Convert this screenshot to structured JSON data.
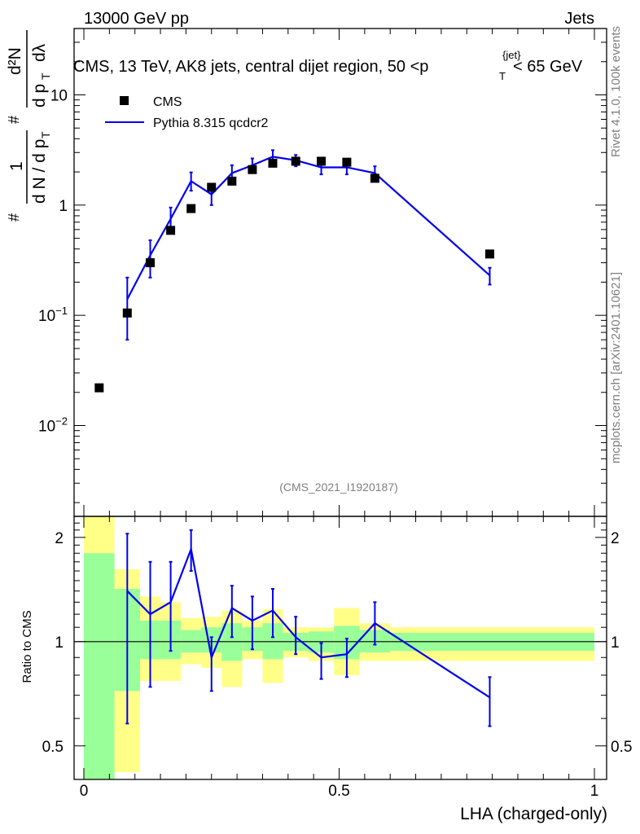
{
  "header": {
    "left": "13000 GeV pp",
    "right": "Jets"
  },
  "side_labels": {
    "rivet": "Rivet 4.1.0,  100k events",
    "mcplots": "mcplots.cern.ch [arXiv:2401.10621]"
  },
  "colors": {
    "data": "#000000",
    "mc": "#0000ee",
    "band_inner": "#99ff99",
    "band_outer": "#ffff88"
  },
  "chart_data": {
    "type": "scatter",
    "title": "CMS, 13 TeV, AK8 jets, central dijet region, 50 <p",
    "title_tail": "< 65 GeV",
    "title_sup": "{jet}",
    "title_sub": "T",
    "analysis_id": "(CMS_2021_I1920187)",
    "xlabel": "LHA (charged-only)",
    "xlim": [
      0,
      1
    ],
    "ylabel_main": {
      "hash": "#",
      "one": "1",
      "dN": "d N / d p",
      "sub_T": "T",
      "d2N": "d²N",
      "dpt_dlam": "d p",
      "dlam": "dλ"
    },
    "ylim_main": [
      0.0015,
      40
    ],
    "yscale_main": "log",
    "y_ticks_main": [
      {
        "value": 10,
        "base": "10",
        "exp": ""
      },
      {
        "value": 1,
        "base": "1",
        "exp": ""
      },
      {
        "value": 0.1,
        "base": "10",
        "exp": "−1"
      },
      {
        "value": 0.01,
        "base": "10",
        "exp": "−2"
      }
    ],
    "x_ticks": [
      {
        "value": 0,
        "label": "0"
      },
      {
        "value": 0.5,
        "label": "0.5"
      },
      {
        "value": 1,
        "label": "1"
      }
    ],
    "legend": [
      {
        "name": "CMS",
        "kind": "marker"
      },
      {
        "name": "Pythia 8.315 qcdcr2",
        "kind": "line"
      }
    ],
    "data_points": [
      {
        "x": 0.03,
        "y": 0.022
      },
      {
        "x": 0.085,
        "y": 0.105
      },
      {
        "x": 0.13,
        "y": 0.3
      },
      {
        "x": 0.17,
        "y": 0.59
      },
      {
        "x": 0.21,
        "y": 0.93
      },
      {
        "x": 0.25,
        "y": 1.45
      },
      {
        "x": 0.29,
        "y": 1.65
      },
      {
        "x": 0.33,
        "y": 2.1
      },
      {
        "x": 0.37,
        "y": 2.4
      },
      {
        "x": 0.415,
        "y": 2.5
      },
      {
        "x": 0.465,
        "y": 2.5
      },
      {
        "x": 0.515,
        "y": 2.45
      },
      {
        "x": 0.57,
        "y": 1.75
      },
      {
        "x": 0.795,
        "y": 0.36
      }
    ],
    "mc_points": [
      {
        "x": 0.085,
        "y": 0.14,
        "lo": 0.06,
        "hi": 0.22
      },
      {
        "x": 0.13,
        "y": 0.35,
        "lo": 0.22,
        "hi": 0.48
      },
      {
        "x": 0.17,
        "y": 0.75,
        "lo": 0.55,
        "hi": 0.95
      },
      {
        "x": 0.21,
        "y": 1.65,
        "lo": 1.35,
        "hi": 1.98
      },
      {
        "x": 0.25,
        "y": 1.25,
        "lo": 1.0,
        "hi": 1.55
      },
      {
        "x": 0.29,
        "y": 1.95,
        "lo": 1.65,
        "hi": 2.3
      },
      {
        "x": 0.33,
        "y": 2.3,
        "lo": 2.0,
        "hi": 2.65
      },
      {
        "x": 0.37,
        "y": 2.75,
        "lo": 2.4,
        "hi": 3.15
      },
      {
        "x": 0.415,
        "y": 2.55,
        "lo": 2.25,
        "hi": 2.85
      },
      {
        "x": 0.465,
        "y": 2.2,
        "lo": 1.9,
        "hi": 2.55
      },
      {
        "x": 0.515,
        "y": 2.2,
        "lo": 1.9,
        "hi": 2.55
      },
      {
        "x": 0.57,
        "y": 1.95,
        "lo": 1.7,
        "hi": 2.25
      },
      {
        "x": 0.795,
        "y": 0.23,
        "lo": 0.19,
        "hi": 0.27
      }
    ],
    "ratio": {
      "ylabel": "Ratio to CMS",
      "ylim": [
        0.4,
        2.3
      ],
      "yscale": "log",
      "y_ticks": [
        {
          "value": 2,
          "label": "2"
        },
        {
          "value": 1,
          "label": "1"
        },
        {
          "value": 0.5,
          "label": "0.5"
        }
      ],
      "points": [
        {
          "x": 0.085,
          "y": 1.4,
          "lo": 0.58,
          "hi": 2.05
        },
        {
          "x": 0.13,
          "y": 1.2,
          "lo": 0.74,
          "hi": 1.7
        },
        {
          "x": 0.17,
          "y": 1.3,
          "lo": 0.94,
          "hi": 1.7
        },
        {
          "x": 0.21,
          "y": 1.85,
          "lo": 1.6,
          "hi": 2.1
        },
        {
          "x": 0.25,
          "y": 0.9,
          "lo": 0.72,
          "hi": 1.03
        },
        {
          "x": 0.29,
          "y": 1.25,
          "lo": 1.03,
          "hi": 1.45
        },
        {
          "x": 0.33,
          "y": 1.15,
          "lo": 0.95,
          "hi": 1.35
        },
        {
          "x": 0.37,
          "y": 1.23,
          "lo": 1.03,
          "hi": 1.42
        },
        {
          "x": 0.415,
          "y": 1.03,
          "lo": 0.92,
          "hi": 1.18
        },
        {
          "x": 0.465,
          "y": 0.9,
          "lo": 0.78,
          "hi": 0.99
        },
        {
          "x": 0.515,
          "y": 0.92,
          "lo": 0.79,
          "hi": 1.02
        },
        {
          "x": 0.57,
          "y": 1.13,
          "lo": 0.98,
          "hi": 1.3
        },
        {
          "x": 0.795,
          "y": 0.69,
          "lo": 0.57,
          "hi": 0.79
        }
      ],
      "bands": [
        {
          "x0": 0.0,
          "x1": 0.06,
          "in_lo": 0.4,
          "in_hi": 1.8,
          "out_lo": 0.4,
          "out_hi": 2.3
        },
        {
          "x0": 0.06,
          "x1": 0.11,
          "in_lo": 0.72,
          "in_hi": 1.42,
          "out_lo": 0.42,
          "out_hi": 1.62
        },
        {
          "x0": 0.11,
          "x1": 0.15,
          "in_lo": 0.89,
          "in_hi": 1.15,
          "out_lo": 0.77,
          "out_hi": 1.35
        },
        {
          "x0": 0.15,
          "x1": 0.19,
          "in_lo": 0.89,
          "in_hi": 1.15,
          "out_lo": 0.77,
          "out_hi": 1.3
        },
        {
          "x0": 0.19,
          "x1": 0.23,
          "in_lo": 0.93,
          "in_hi": 1.08,
          "out_lo": 0.86,
          "out_hi": 1.17
        },
        {
          "x0": 0.23,
          "x1": 0.27,
          "in_lo": 0.93,
          "in_hi": 1.1,
          "out_lo": 0.84,
          "out_hi": 1.18
        },
        {
          "x0": 0.27,
          "x1": 0.31,
          "in_lo": 0.88,
          "in_hi": 1.13,
          "out_lo": 0.74,
          "out_hi": 1.23
        },
        {
          "x0": 0.31,
          "x1": 0.35,
          "in_lo": 0.94,
          "in_hi": 1.1,
          "out_lo": 0.89,
          "out_hi": 1.15
        },
        {
          "x0": 0.35,
          "x1": 0.39,
          "in_lo": 0.89,
          "in_hi": 1.13,
          "out_lo": 0.76,
          "out_hi": 1.24
        },
        {
          "x0": 0.39,
          "x1": 0.44,
          "in_lo": 0.94,
          "in_hi": 1.06,
          "out_lo": 0.9,
          "out_hi": 1.1
        },
        {
          "x0": 0.44,
          "x1": 0.49,
          "in_lo": 0.93,
          "in_hi": 1.07,
          "out_lo": 0.88,
          "out_hi": 1.1
        },
        {
          "x0": 0.49,
          "x1": 0.54,
          "in_lo": 0.89,
          "in_hi": 1.11,
          "out_lo": 0.8,
          "out_hi": 1.25
        },
        {
          "x0": 0.54,
          "x1": 0.6,
          "in_lo": 0.93,
          "in_hi": 1.08,
          "out_lo": 0.88,
          "out_hi": 1.13
        },
        {
          "x0": 0.6,
          "x1": 1.0,
          "in_lo": 0.94,
          "in_hi": 1.06,
          "out_lo": 0.88,
          "out_hi": 1.1
        }
      ]
    }
  }
}
